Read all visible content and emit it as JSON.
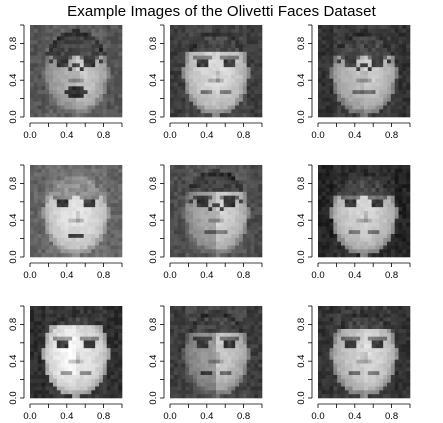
{
  "figure": {
    "title": "Example Images of the Olivetti Faces Dataset"
  },
  "panel_axis": {
    "x_tick_labels": [
      "0.0",
      "0.4",
      "0.8"
    ],
    "y_tick_labels": [
      "0.0",
      "0.4",
      "0.8"
    ],
    "x_tick_values": [
      0,
      0.2,
      0.4,
      0.6,
      0.8,
      1.0
    ],
    "y_tick_values": [
      0,
      0.2,
      0.4,
      0.6,
      0.8,
      1.0
    ],
    "x_labeled_values": [
      0,
      0.4,
      0.8
    ],
    "y_labeled_values": [
      0,
      0.4,
      0.8
    ],
    "xlim": [
      0,
      1
    ],
    "ylim": [
      0,
      1
    ]
  },
  "faces": [
    {
      "id": "face-1",
      "traits": {
        "skin": 145,
        "hair": "dark",
        "hairTop": 0.12,
        "glasses": true,
        "mouth": "open",
        "bg": 95,
        "lightLeft": 0.9
      }
    },
    {
      "id": "face-2",
      "traits": {
        "skin": 165,
        "hair": "dark",
        "hairTop": 0.1,
        "glasses": false,
        "mouth": "smile",
        "bg": 70,
        "lightLeft": 1.0
      }
    },
    {
      "id": "face-3",
      "traits": {
        "skin": 150,
        "hair": "dark",
        "hairTop": 0.15,
        "glasses": true,
        "mouth": "neutral",
        "bg": 60,
        "lightLeft": 0.95
      }
    },
    {
      "id": "face-4",
      "traits": {
        "skin": 175,
        "hair": "light",
        "hairTop": 0.12,
        "glasses": false,
        "mouth": "teeth",
        "bg": 110,
        "lightLeft": 1.0
      }
    },
    {
      "id": "face-5",
      "traits": {
        "skin": 150,
        "hair": "dark",
        "hairTop": 0.1,
        "glasses": true,
        "mouth": "neutral",
        "bg": 85,
        "lightLeft": 0.85
      }
    },
    {
      "id": "face-6",
      "traits": {
        "skin": 160,
        "hair": "dark",
        "hairTop": 0.12,
        "glasses": false,
        "mouth": "smile",
        "bg": 45,
        "lightLeft": 1.0
      }
    },
    {
      "id": "face-7",
      "traits": {
        "skin": 185,
        "hair": "dark",
        "hairTop": 0.0,
        "glasses": false,
        "mouth": "smile",
        "bg": 55,
        "lightLeft": 1.05
      }
    },
    {
      "id": "face-8",
      "traits": {
        "skin": 140,
        "hair": "dark",
        "hairTop": 0.08,
        "glasses": false,
        "mouth": "smile",
        "bg": 70,
        "lightLeft": 0.8
      }
    },
    {
      "id": "face-9",
      "traits": {
        "skin": 165,
        "hair": "dark",
        "hairTop": 0.05,
        "glasses": false,
        "mouth": "smile",
        "bg": 60,
        "lightLeft": 0.95
      }
    }
  ]
}
